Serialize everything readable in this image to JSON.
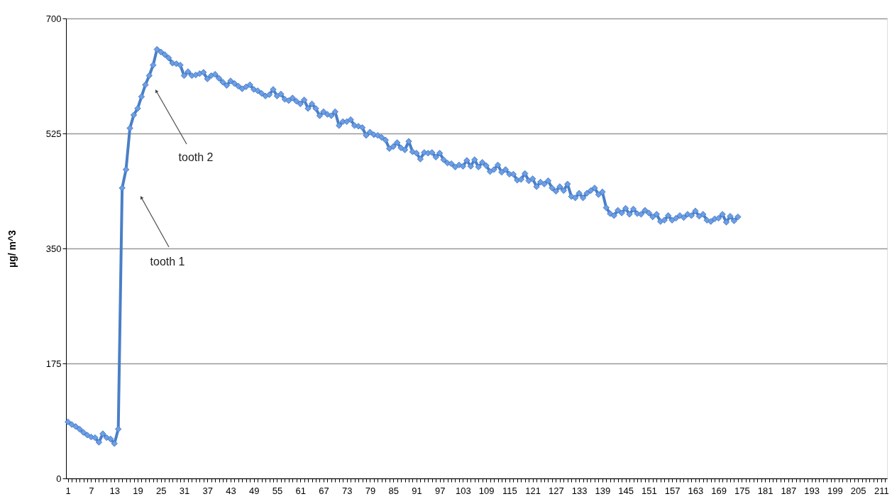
{
  "chart_data": {
    "type": "line",
    "ylabel": "µg/ m^3",
    "categories": [
      "1",
      null,
      null,
      null,
      null,
      null,
      "7",
      null,
      null,
      null,
      null,
      null,
      "13",
      null,
      null,
      null,
      null,
      null,
      "19",
      null,
      null,
      null,
      null,
      null,
      "25",
      null,
      null,
      null,
      null,
      null,
      "31",
      null,
      null,
      null,
      null,
      null,
      "37",
      null,
      null,
      null,
      null,
      null,
      "43",
      null,
      null,
      null,
      null,
      null,
      "49",
      null,
      null,
      null,
      null,
      null,
      "55",
      null,
      null,
      null,
      null,
      null,
      "61",
      null,
      null,
      null,
      null,
      null,
      "67",
      null,
      null,
      null,
      null,
      null,
      "73",
      null,
      null,
      null,
      null,
      null,
      "79",
      null,
      null,
      null,
      null,
      null,
      "85",
      null,
      null,
      null,
      null,
      null,
      "91",
      null,
      null,
      null,
      null,
      null,
      "97",
      null,
      null,
      null,
      null,
      null,
      "103",
      null,
      null,
      null,
      null,
      null,
      "109",
      null,
      null,
      null,
      null,
      null,
      "115",
      null,
      null,
      null,
      null,
      null,
      "121",
      null,
      null,
      null,
      null,
      null,
      "127",
      null,
      null,
      null,
      null,
      null,
      "133",
      null,
      null,
      null,
      null,
      null,
      "139",
      null,
      null,
      null,
      null,
      null,
      "145",
      null,
      null,
      null,
      null,
      null,
      "151",
      null,
      null,
      null,
      null,
      null,
      "157",
      null,
      null,
      null,
      null,
      null,
      "163",
      null,
      null,
      null,
      null,
      null,
      "169",
      null,
      null,
      null,
      null,
      null,
      "175",
      null,
      null,
      null,
      null,
      null,
      "181",
      null,
      null,
      null,
      null,
      null,
      "187",
      null,
      null,
      null,
      null,
      null,
      "193",
      null,
      null,
      null,
      null,
      null,
      "199",
      null,
      null,
      null,
      null,
      null,
      "205",
      null,
      null,
      null,
      null,
      null,
      "211",
      null
    ],
    "series": [
      {
        "color": "#4a7fc7",
        "values": [
          86,
          82,
          79,
          75,
          70,
          66,
          63,
          62,
          55,
          68,
          62,
          60,
          53,
          75,
          442,
          470,
          533,
          553,
          563,
          581,
          599,
          613,
          629,
          653,
          649,
          645,
          640,
          632,
          631,
          629,
          613,
          619,
          613,
          614,
          616,
          618,
          608,
          613,
          615,
          609,
          603,
          598,
          605,
          601,
          597,
          593,
          596,
          599,
          592,
          590,
          586,
          582,
          584,
          592,
          582,
          585,
          577,
          575,
          579,
          574,
          570,
          576,
          563,
          570,
          563,
          552,
          558,
          554,
          552,
          558,
          537,
          543,
          543,
          546,
          537,
          536,
          534,
          522,
          527,
          523,
          522,
          519,
          515,
          502,
          505,
          511,
          503,
          500,
          513,
          497,
          495,
          486,
          496,
          495,
          496,
          489,
          495,
          485,
          480,
          479,
          474,
          477,
          475,
          484,
          475,
          485,
          474,
          481,
          476,
          467,
          470,
          477,
          466,
          470,
          463,
          463,
          454,
          455,
          464,
          453,
          456,
          444,
          451,
          448,
          453,
          442,
          437,
          444,
          438,
          448,
          429,
          427,
          434,
          427,
          434,
          438,
          442,
          432,
          436,
          412,
          403,
          400,
          408,
          404,
          411,
          402,
          410,
          403,
          402,
          408,
          404,
          398,
          402,
          391,
          393,
          400,
          393,
          396,
          400,
          397,
          402,
          400,
          407,
          399,
          402,
          393,
          391,
          395,
          396,
          402,
          390,
          399,
          392,
          398,
          null,
          null,
          null,
          null,
          null,
          null,
          null,
          null,
          null,
          null,
          null,
          null,
          null,
          null,
          null,
          null,
          null,
          null,
          null,
          null,
          null,
          null,
          null,
          null,
          null,
          null,
          null,
          null,
          null,
          null,
          null,
          null,
          null,
          null,
          null,
          null,
          null,
          null
        ]
      }
    ],
    "ylim": [
      0,
      700
    ],
    "yticks": [
      0,
      175,
      350,
      525,
      700
    ],
    "grid": "y",
    "marker": "diamond",
    "line_style": "solid",
    "annotations": [
      "tooth 2",
      "tooth 1"
    ]
  }
}
